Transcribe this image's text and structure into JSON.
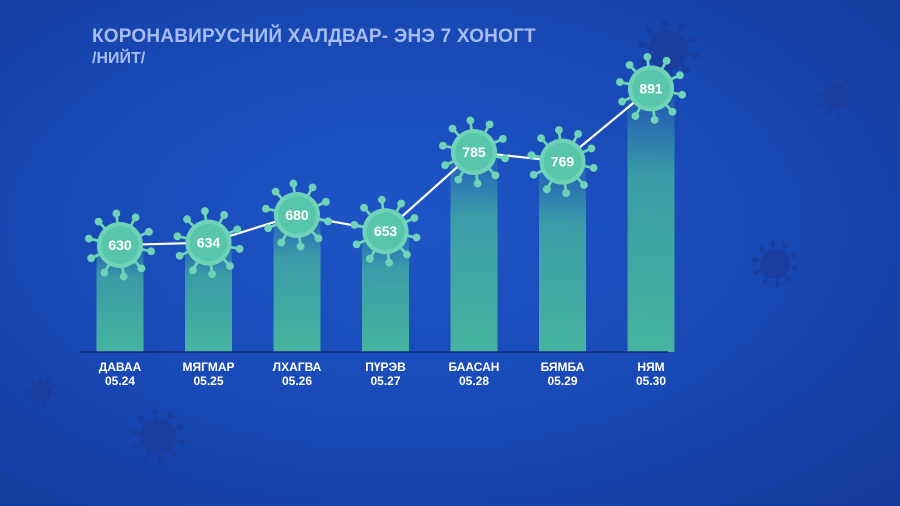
{
  "header": {
    "title": "КОРОНАВИРУСНИЙ ХАЛДВАР- ЭНЭ 7 ХОНОГТ",
    "subtitle": "/НИЙТ/"
  },
  "colors": {
    "background": "#1848b4",
    "bar": "#46b5a0",
    "virus": "#6fd3b8",
    "virus_core": "#58c6aa",
    "line": "#ffffff",
    "title": "#a7bdf1",
    "decor_virus": "#1a3e9e"
  },
  "icons": {
    "marker": "coronavirus-icon",
    "decoration": "coronavirus-icon"
  },
  "chart_data": {
    "type": "bar",
    "title": "КОРОНАВИРУСНИЙ ХАЛДВАР- ЭНЭ 7 ХОНОГТ",
    "subtitle": "/НИЙТ/",
    "categories": [
      "ДАВАА",
      "МЯГМАР",
      "ЛХАГВА",
      "ПҮРЭВ",
      "БААСАН",
      "БЯМБА",
      "НЯМ"
    ],
    "dates": [
      "05.24",
      "05.25",
      "05.26",
      "05.27",
      "05.28",
      "05.29",
      "05.30"
    ],
    "values": [
      630,
      634,
      680,
      653,
      785,
      769,
      891
    ],
    "data_labels": [
      "630",
      "634",
      "680",
      "653",
      "785",
      "769",
      "891"
    ],
    "overlay_line": true,
    "grid": false,
    "legend": "none"
  }
}
